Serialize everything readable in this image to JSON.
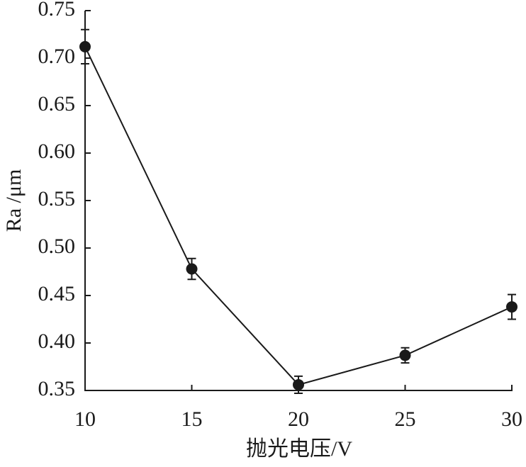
{
  "chart_data": {
    "type": "line",
    "x_label": "抛光电压/V",
    "y_label": "Ra /μm",
    "x": [
      10,
      15,
      20,
      25,
      30
    ],
    "series": [
      {
        "color": "#1a1a1a",
        "values": [
          0.712,
          0.478,
          0.356,
          0.387,
          0.438
        ],
        "errors": [
          0.018,
          0.011,
          0.009,
          0.008,
          0.013
        ]
      }
    ],
    "xlim": [
      10,
      30
    ],
    "xticks": [
      10,
      15,
      20,
      25,
      30
    ],
    "ylim": [
      0.35,
      0.75
    ],
    "yticks": [
      0.35,
      {
        "value": 0.4,
        "label": "0.40"
      },
      0.45,
      {
        "value": 0.5,
        "label": "0.50"
      },
      0.55,
      {
        "value": 0.6,
        "label": "0.60"
      },
      0.65,
      {
        "value": 0.7,
        "label": "0.70"
      },
      0.75
    ]
  }
}
